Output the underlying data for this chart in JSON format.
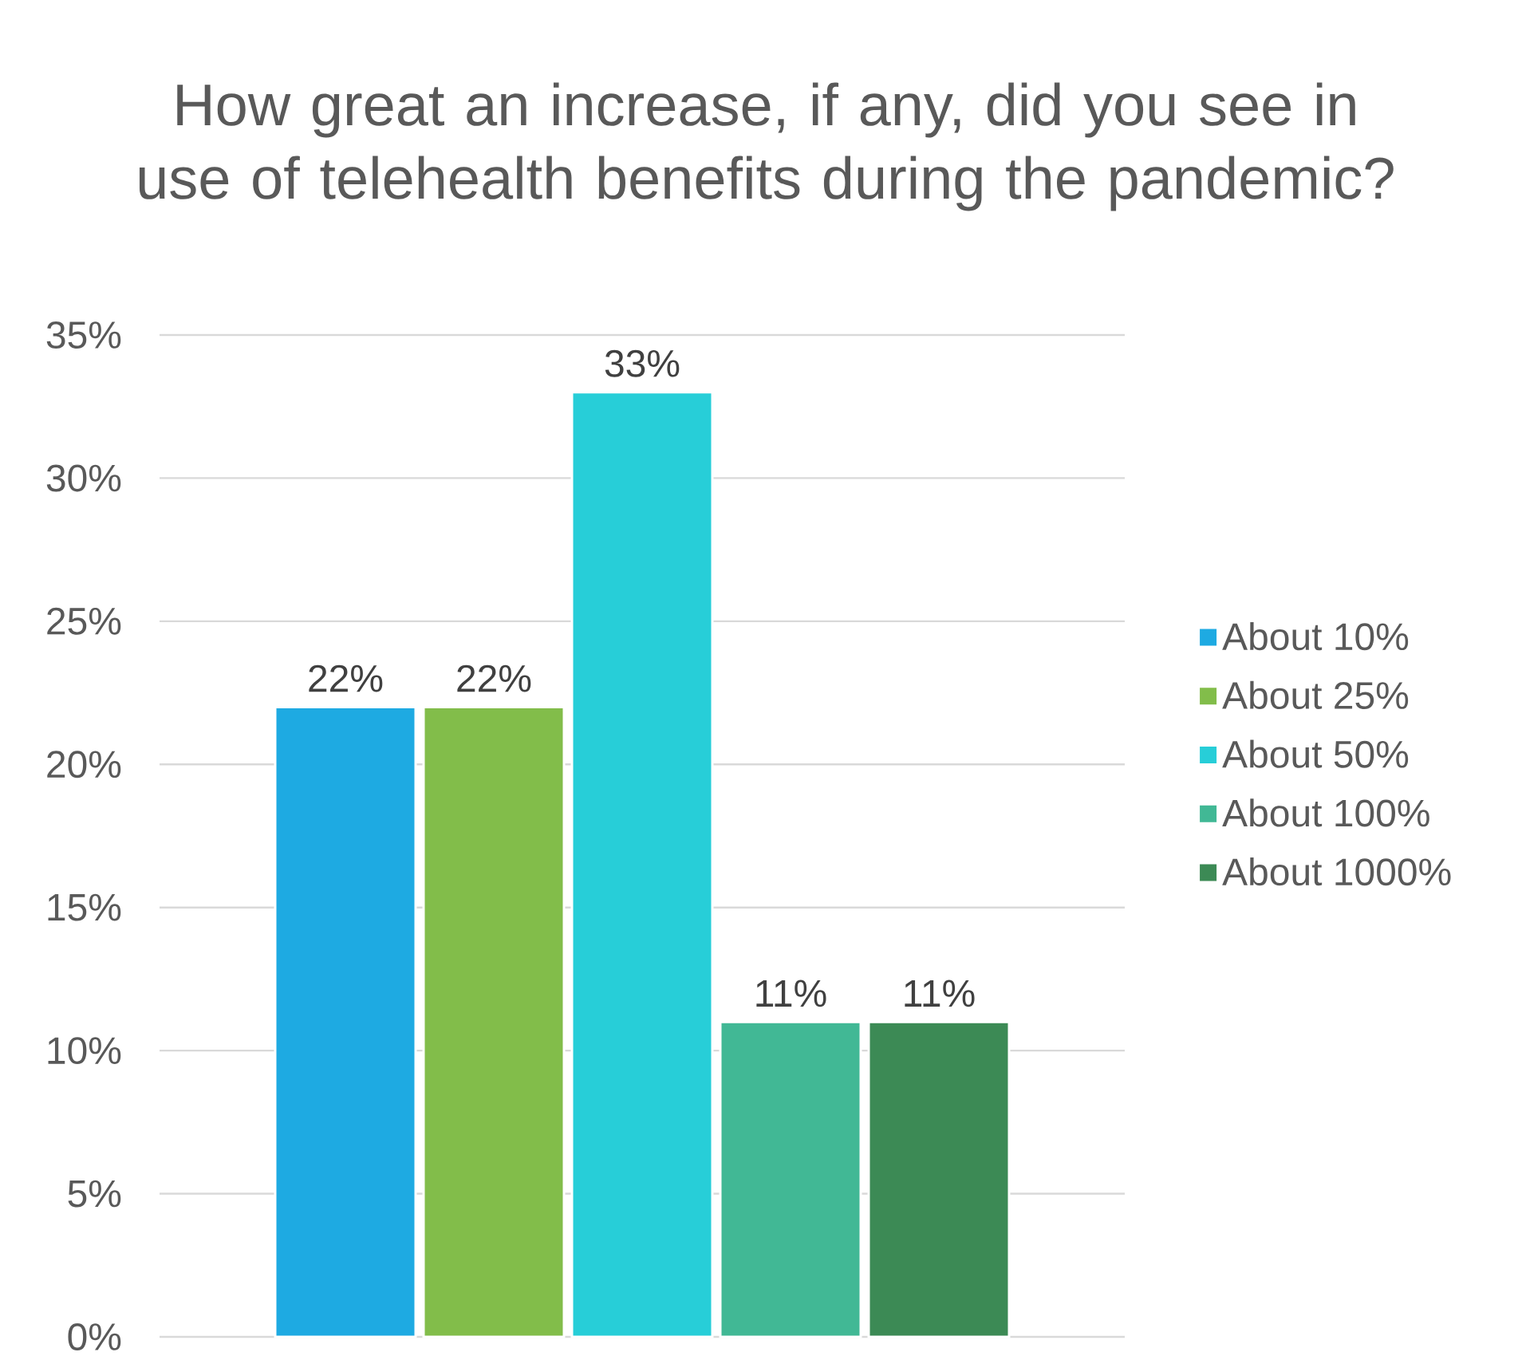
{
  "chart_data": {
    "type": "bar",
    "title": "How great an increase, if any, did you see in use of telehealth benefits during the pandemic?",
    "categories": [
      null
    ],
    "series": [
      {
        "name": "About 10%",
        "color": "#1eaae2",
        "values": [
          22
        ],
        "value_labels": [
          "22%"
        ]
      },
      {
        "name": "About 25%",
        "color": "#82bd4a",
        "values": [
          22
        ],
        "value_labels": [
          "22%"
        ]
      },
      {
        "name": "About 50%",
        "color": "#27ced8",
        "values": [
          33
        ],
        "value_labels": [
          "33%"
        ]
      },
      {
        "name": "About 100%",
        "color": "#41b895",
        "values": [
          11
        ],
        "value_labels": [
          "11%"
        ]
      },
      {
        "name": "About 1000%",
        "color": "#3c8a55",
        "values": [
          11
        ],
        "value_labels": [
          "11%"
        ]
      }
    ],
    "ylim": [
      0,
      35
    ],
    "yticks": [
      {
        "value": 0,
        "label": "0%"
      },
      {
        "value": 5,
        "label": "5%"
      },
      {
        "value": 10,
        "label": "10%"
      },
      {
        "value": 15,
        "label": "15%"
      },
      {
        "value": 20,
        "label": "20%"
      },
      {
        "value": 25,
        "label": "25%"
      },
      {
        "value": 30,
        "label": "30%"
      },
      {
        "value": 35,
        "label": "35%"
      }
    ],
    "grid": "y",
    "legend": "right"
  }
}
